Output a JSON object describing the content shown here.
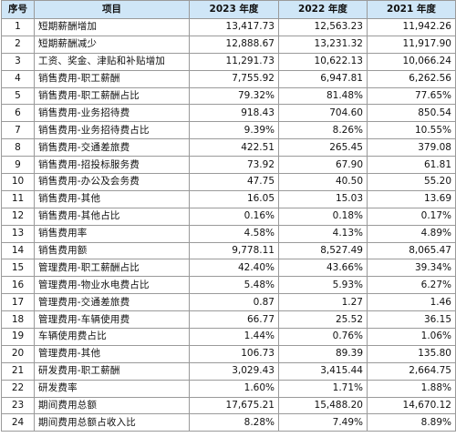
{
  "table": {
    "headers": [
      "序号",
      "项目",
      "2023 年度",
      "2022 年度",
      "2021 年度"
    ],
    "rows": [
      [
        "1",
        "短期薪酬增加",
        "13,417.73",
        "12,563.23",
        "11,942.26"
      ],
      [
        "2",
        "短期薪酬减少",
        "12,888.67",
        "13,231.32",
        "11,917.90"
      ],
      [
        "3",
        "工资、奖金、津贴和补贴增加",
        "11,291.73",
        "10,622.13",
        "10,066.24"
      ],
      [
        "4",
        "销售费用-职工薪酬",
        "7,755.92",
        "6,947.81",
        "6,262.56"
      ],
      [
        "5",
        "销售费用-职工薪酬占比",
        "79.32%",
        "81.48%",
        "77.65%"
      ],
      [
        "6",
        "销售费用-业务招待费",
        "918.43",
        "704.60",
        "850.54"
      ],
      [
        "7",
        "销售费用-业务招待费占比",
        "9.39%",
        "8.26%",
        "10.55%"
      ],
      [
        "8",
        "销售费用-交通差旅费",
        "422.51",
        "265.45",
        "379.08"
      ],
      [
        "9",
        "销售费用-招投标服务费",
        "73.92",
        "67.90",
        "61.81"
      ],
      [
        "10",
        "销售费用-办公及会务费",
        "47.75",
        "40.50",
        "55.20"
      ],
      [
        "11",
        "销售费用-其他",
        "16.05",
        "15.03",
        "13.69"
      ],
      [
        "12",
        "销售费用-其他占比",
        "0.16%",
        "0.18%",
        "0.17%"
      ],
      [
        "13",
        "销售费用率",
        "4.58%",
        "4.13%",
        "4.89%"
      ],
      [
        "14",
        "销售费用额",
        "9,778.11",
        "8,527.49",
        "8,065.47"
      ],
      [
        "15",
        "管理费用-职工薪酬占比",
        "42.40%",
        "43.66%",
        "39.34%"
      ],
      [
        "16",
        "管理费用-物业水电费占比",
        "5.48%",
        "5.93%",
        "6.27%"
      ],
      [
        "17",
        "管理费用-交通差旅费",
        "0.87",
        "1.27",
        "1.46"
      ],
      [
        "18",
        "管理费用-车辆使用费",
        "66.77",
        "25.52",
        "36.15"
      ],
      [
        "19",
        "车辆使用费占比",
        "1.44%",
        "0.76%",
        "1.06%"
      ],
      [
        "20",
        "管理费用-其他",
        "106.73",
        "89.39",
        "135.80"
      ],
      [
        "21",
        "研发费用-职工薪酬",
        "3,029.43",
        "3,415.44",
        "2,664.75"
      ],
      [
        "22",
        "研发费率",
        "1.60%",
        "1.71%",
        "1.88%"
      ],
      [
        "23",
        "期间费用总额",
        "17,675.21",
        "15,488.20",
        "14,670.12"
      ],
      [
        "24",
        "期间费用总额占收入比",
        "8.28%",
        "7.49%",
        "8.89%"
      ]
    ]
  }
}
